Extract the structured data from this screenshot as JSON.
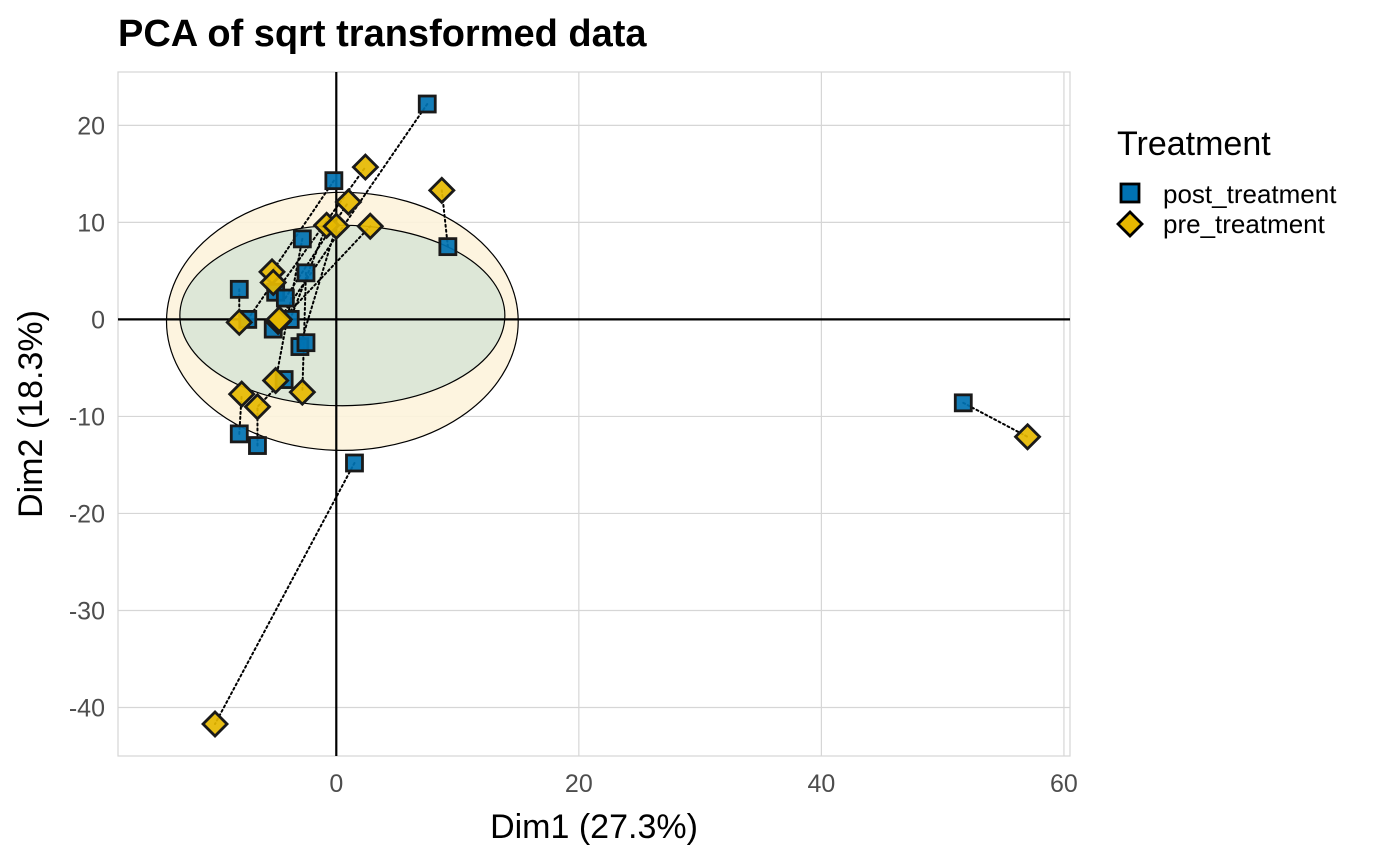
{
  "chart_data": {
    "type": "scatter",
    "title": "PCA of sqrt transformed data",
    "xlabel": "Dim1 (27.3%)",
    "ylabel": "Dim2 (18.3%)",
    "xlim": [
      -18,
      60.5
    ],
    "ylim": [
      -45,
      25.5
    ],
    "xticks": [
      0,
      20,
      40,
      60
    ],
    "yticks": [
      -40,
      -30,
      -20,
      -10,
      0,
      10,
      20
    ],
    "grid": true,
    "legend": {
      "title": "Treatment",
      "position": "right",
      "entries": [
        {
          "label": "post_treatment",
          "marker": "square",
          "color": "#0072B2"
        },
        {
          "label": "pre_treatment",
          "marker": "diamond",
          "color": "#E6B800"
        }
      ]
    },
    "series": [
      {
        "name": "post_treatment",
        "marker": "square",
        "color": "#0072B2",
        "points": [
          {
            "x": 7.5,
            "y": 22.2
          },
          {
            "x": -0.2,
            "y": 14.3
          },
          {
            "x": 9.2,
            "y": 7.5
          },
          {
            "x": -2.8,
            "y": 8.3
          },
          {
            "x": -2.5,
            "y": 4.8
          },
          {
            "x": -8,
            "y": 3.1
          },
          {
            "x": -5,
            "y": 2.8
          },
          {
            "x": -4.2,
            "y": 2.2
          },
          {
            "x": -7.3,
            "y": 0
          },
          {
            "x": -5.2,
            "y": -1
          },
          {
            "x": -3.8,
            "y": 0
          },
          {
            "x": -3,
            "y": -2.8
          },
          {
            "x": -2.5,
            "y": -2.4
          },
          {
            "x": -4.3,
            "y": -6.2
          },
          {
            "x": -8,
            "y": -11.8
          },
          {
            "x": -6.5,
            "y": -13
          },
          {
            "x": 1.5,
            "y": -14.8
          },
          {
            "x": 51.7,
            "y": -8.6
          }
        ]
      },
      {
        "name": "pre_treatment",
        "marker": "diamond",
        "color": "#E6B800",
        "points": [
          {
            "x": 2.4,
            "y": 15.7
          },
          {
            "x": 8.7,
            "y": 13.3
          },
          {
            "x": 1,
            "y": 12.1
          },
          {
            "x": -0.8,
            "y": 9.7
          },
          {
            "x": 0,
            "y": 9.6
          },
          {
            "x": 2.8,
            "y": 9.6
          },
          {
            "x": -5.3,
            "y": 4.9
          },
          {
            "x": -5.2,
            "y": 3.8
          },
          {
            "x": -8,
            "y": -0.3
          },
          {
            "x": -4.8,
            "y": -0.2
          },
          {
            "x": -4.7,
            "y": 0
          },
          {
            "x": -5,
            "y": -6.3
          },
          {
            "x": -2.8,
            "y": -7.5
          },
          {
            "x": -7.8,
            "y": -7.7
          },
          {
            "x": -6.5,
            "y": -9
          },
          {
            "x": -10,
            "y": -41.7
          },
          {
            "x": 57,
            "y": -12.1
          }
        ]
      }
    ],
    "pairs": [
      [
        7.5,
        22.2,
        -4.7,
        0
      ],
      [
        -0.2,
        14.3,
        -5.3,
        4.9
      ],
      [
        9.2,
        7.5,
        8.7,
        13.3
      ],
      [
        -2.8,
        8.3,
        -5,
        -6.3
      ],
      [
        -2.5,
        4.8,
        -2.8,
        -7.5
      ],
      [
        -8,
        3.1,
        -8,
        -0.3
      ],
      [
        -5,
        2.8,
        2.4,
        15.7
      ],
      [
        -4.2,
        2.2,
        1,
        12.1
      ],
      [
        -7.3,
        0,
        -5.2,
        3.8
      ],
      [
        -5.2,
        -1,
        2.8,
        9.6
      ],
      [
        -3.8,
        0,
        -0.8,
        9.7
      ],
      [
        -3,
        -2.8,
        0,
        9.6
      ],
      [
        -4.3,
        -6.2,
        -6.5,
        -9
      ],
      [
        -8,
        -11.8,
        -7.8,
        -7.7
      ],
      [
        -6.5,
        -13,
        -6.5,
        -9
      ],
      [
        1.5,
        -14.8,
        -10,
        -41.7
      ],
      [
        51.7,
        -8.6,
        57,
        -12.1
      ]
    ],
    "ellipses": [
      {
        "level": "outer",
        "cx": 0.5,
        "cy": -0.2,
        "rx": 14.5,
        "ry": 13.3,
        "fill": "#fdf3dc"
      },
      {
        "level": "inner",
        "cx": 0.5,
        "cy": 0.4,
        "rx": 13.4,
        "ry": 9.3,
        "fill": "#d9e5d6"
      }
    ]
  }
}
